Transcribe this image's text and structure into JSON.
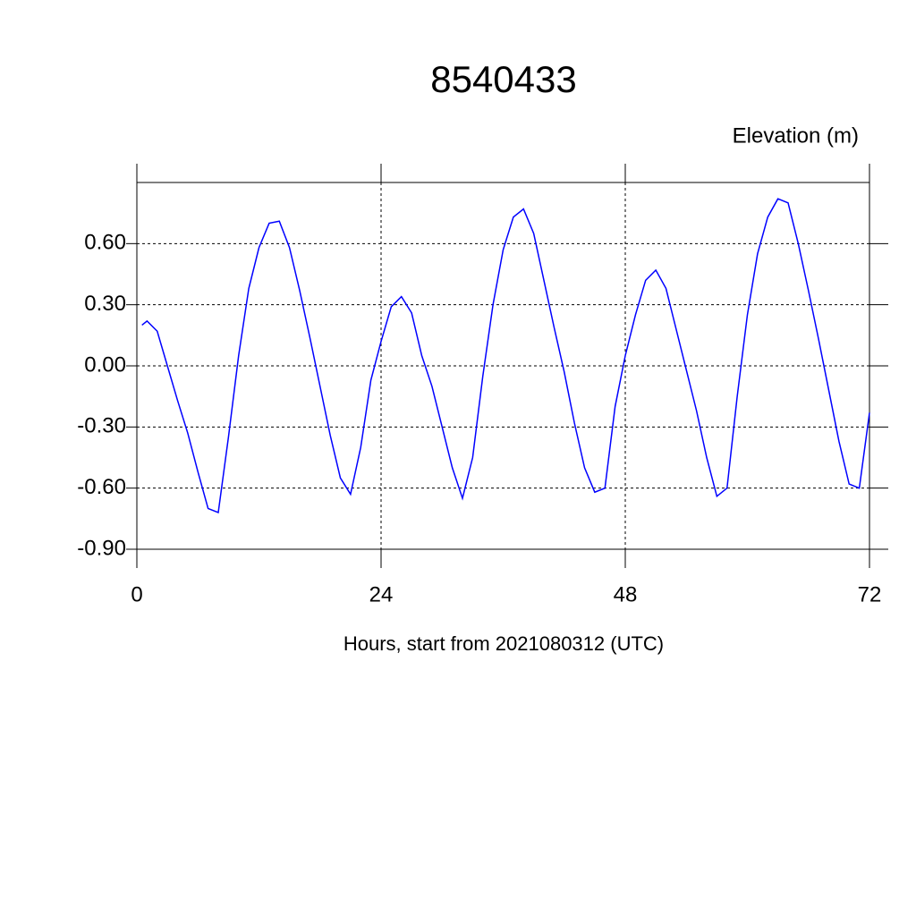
{
  "chart_data": {
    "type": "line",
    "title": "8540433",
    "y_label": "Elevation (m)",
    "x_label": "Hours, start from 2021080312 (UTC)",
    "x": [
      0.5,
      1,
      2,
      3,
      4,
      5,
      6,
      7,
      8,
      9,
      10,
      11,
      12,
      13,
      14,
      15,
      16,
      17,
      18,
      19,
      20,
      21,
      22,
      23,
      24,
      25,
      26,
      27,
      28,
      29,
      30,
      31,
      32,
      33,
      34,
      35,
      36,
      37,
      38,
      39,
      40,
      41,
      42,
      43,
      44,
      45,
      46,
      47,
      48,
      49,
      50,
      51,
      52,
      53,
      54,
      55,
      56,
      57,
      58,
      59,
      60,
      61,
      62,
      63,
      64,
      65,
      66,
      67,
      68,
      69,
      70,
      71,
      72
    ],
    "series": [
      {
        "color": "#0000ff",
        "values": [
          0.2,
          0.22,
          0.17,
          0.0,
          -0.17,
          -0.33,
          -0.52,
          -0.7,
          -0.72,
          -0.35,
          0.05,
          0.38,
          0.58,
          0.7,
          0.71,
          0.58,
          0.37,
          0.14,
          -0.1,
          -0.34,
          -0.55,
          -0.63,
          -0.4,
          -0.07,
          0.12,
          0.29,
          0.34,
          0.26,
          0.05,
          -0.1,
          -0.3,
          -0.5,
          -0.65,
          -0.45,
          -0.05,
          0.3,
          0.57,
          0.73,
          0.77,
          0.65,
          0.42,
          0.19,
          -0.03,
          -0.28,
          -0.5,
          -0.62,
          -0.6,
          -0.2,
          0.05,
          0.25,
          0.42,
          0.47,
          0.38,
          0.18,
          -0.02,
          -0.22,
          -0.45,
          -0.64,
          -0.6,
          -0.15,
          0.25,
          0.55,
          0.73,
          0.82,
          0.8,
          0.6,
          0.37,
          0.13,
          -0.12,
          -0.37,
          -0.58,
          -0.6,
          -0.23
        ]
      }
    ],
    "xlim": [
      0,
      72
    ],
    "xticks": [
      0,
      24,
      48,
      72
    ],
    "ylim": [
      -0.9,
      0.9
    ],
    "yticks": [
      {
        "value": -0.9,
        "label": "-0.90"
      },
      {
        "value": -0.6,
        "label": "-0.60"
      },
      {
        "value": -0.3,
        "label": "-0.30"
      },
      {
        "value": 0,
        "label": "0.00"
      },
      {
        "value": 0.3,
        "label": "0.30"
      },
      {
        "value": 0.6,
        "label": "0.60"
      }
    ],
    "grid": true
  }
}
